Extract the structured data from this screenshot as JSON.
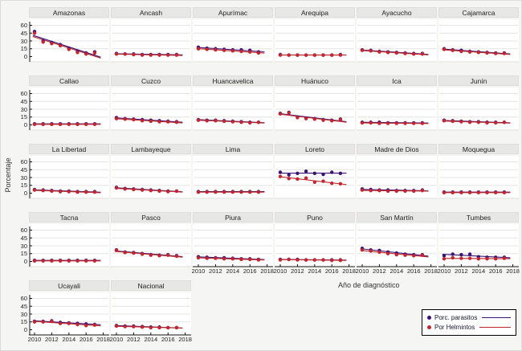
{
  "figure": {
    "ylabel": "Porcentaje",
    "xlabel": "Año de diagnóstico"
  },
  "legend": {
    "items": [
      {
        "label": "Porc. parasitos",
        "color": "#3a1275"
      },
      {
        "label": "Por Helmintos",
        "color": "#c1272d"
      }
    ]
  },
  "chart_data": {
    "type": "scatter",
    "x": [
      2010,
      2011,
      2012,
      2013,
      2014,
      2015,
      2016,
      2017
    ],
    "x_ticks": [
      2010,
      2012,
      2014,
      2016,
      2018
    ],
    "y_ticks": [
      0,
      15,
      30,
      45,
      60
    ],
    "ylim": [
      0,
      60
    ],
    "xlim": [
      2009.5,
      2018.5
    ],
    "grid": true,
    "trend_lines": true,
    "legend_position": "bottom-right",
    "colors": {
      "parasitos": "#3a1275",
      "helmintos": "#c1272d"
    },
    "series_names": [
      "Porc. parasitos",
      "Por Helmintos"
    ],
    "facets": [
      {
        "title": "Amazonas",
        "parasitos": [
          48,
          30,
          27,
          23,
          16,
          10,
          7,
          9
        ],
        "helmintos": [
          45,
          28,
          25,
          21,
          14,
          8,
          5,
          7
        ]
      },
      {
        "title": "Ancash",
        "parasitos": [
          6,
          5,
          5,
          4,
          4,
          4,
          4,
          4
        ],
        "helmintos": [
          5,
          5,
          4,
          3,
          3,
          3,
          3,
          3
        ]
      },
      {
        "title": "Apurímac",
        "parasitos": [
          18,
          16,
          15,
          14,
          13,
          13,
          12,
          9
        ],
        "helmintos": [
          15,
          14,
          13,
          12,
          11,
          10,
          9,
          7
        ]
      },
      {
        "title": "Arequipa",
        "parasitos": [
          4,
          3,
          3,
          3,
          3,
          3,
          3,
          4
        ],
        "helmintos": [
          3,
          3,
          3,
          3,
          3,
          3,
          3,
          3
        ]
      },
      {
        "title": "Ayacucho",
        "parasitos": [
          13,
          12,
          10,
          9,
          8,
          7,
          6,
          6
        ],
        "helmintos": [
          12,
          11,
          9,
          8,
          7,
          6,
          5,
          5
        ]
      },
      {
        "title": "Cajamarca",
        "parasitos": [
          15,
          13,
          12,
          10,
          9,
          8,
          7,
          7
        ],
        "helmintos": [
          14,
          12,
          10,
          9,
          8,
          7,
          6,
          6
        ]
      },
      {
        "title": "Callao",
        "parasitos": [
          2,
          2,
          2,
          2,
          2,
          2,
          2,
          2
        ],
        "helmintos": [
          1,
          1,
          1,
          1,
          1,
          1,
          1,
          1
        ]
      },
      {
        "title": "Cuzco",
        "parasitos": [
          14,
          12,
          11,
          10,
          9,
          8,
          7,
          6
        ],
        "helmintos": [
          12,
          11,
          10,
          8,
          7,
          6,
          6,
          5
        ]
      },
      {
        "title": "Huancavelica",
        "parasitos": [
          10,
          9,
          9,
          8,
          7,
          6,
          5,
          5
        ],
        "helmintos": [
          9,
          8,
          8,
          7,
          6,
          5,
          4,
          5
        ]
      },
      {
        "title": "Huánuco",
        "parasitos": [
          22,
          24,
          15,
          13,
          12,
          10,
          9,
          11
        ],
        "helmintos": [
          21,
          23,
          14,
          12,
          11,
          9,
          8,
          10
        ]
      },
      {
        "title": "Ica",
        "parasitos": [
          5,
          5,
          5,
          4,
          4,
          4,
          4,
          4
        ],
        "helmintos": [
          4,
          4,
          3,
          3,
          3,
          3,
          3,
          3
        ]
      },
      {
        "title": "Junín",
        "parasitos": [
          9,
          8,
          7,
          6,
          6,
          5,
          5,
          5
        ],
        "helmintos": [
          8,
          7,
          6,
          5,
          5,
          4,
          4,
          5
        ]
      },
      {
        "title": "La Libertad",
        "parasitos": [
          7,
          6,
          5,
          4,
          4,
          3,
          3,
          3
        ],
        "helmintos": [
          6,
          5,
          4,
          3,
          3,
          2,
          2,
          2
        ]
      },
      {
        "title": "Lambayeque",
        "parasitos": [
          11,
          9,
          8,
          7,
          6,
          5,
          4,
          4
        ],
        "helmintos": [
          10,
          8,
          7,
          6,
          5,
          4,
          3,
          4
        ]
      },
      {
        "title": "Lima",
        "parasitos": [
          3,
          3,
          3,
          3,
          3,
          3,
          3,
          3
        ],
        "helmintos": [
          2,
          2,
          2,
          2,
          2,
          2,
          2,
          2
        ]
      },
      {
        "title": "Loreto",
        "parasitos": [
          40,
          35,
          38,
          42,
          38,
          36,
          40,
          38
        ],
        "helmintos": [
          32,
          28,
          27,
          29,
          21,
          23,
          19,
          18
        ]
      },
      {
        "title": "Madre de Dios",
        "parasitos": [
          8,
          7,
          6,
          6,
          5,
          5,
          5,
          6
        ],
        "helmintos": [
          6,
          5,
          5,
          4,
          4,
          4,
          4,
          5
        ]
      },
      {
        "title": "Moquegua",
        "parasitos": [
          2,
          2,
          2,
          2,
          2,
          2,
          2,
          2
        ],
        "helmintos": [
          1,
          1,
          1,
          1,
          1,
          1,
          1,
          1
        ]
      },
      {
        "title": "Tacna",
        "parasitos": [
          2,
          2,
          2,
          2,
          2,
          2,
          2,
          2
        ],
        "helmintos": [
          1,
          1,
          1,
          1,
          1,
          1,
          1,
          1
        ]
      },
      {
        "title": "Pasco",
        "parasitos": [
          22,
          18,
          17,
          15,
          13,
          12,
          13,
          11
        ],
        "helmintos": [
          21,
          17,
          16,
          14,
          12,
          11,
          12,
          10
        ]
      },
      {
        "title": "Piura",
        "parasitos": [
          9,
          8,
          7,
          7,
          6,
          5,
          5,
          4
        ],
        "helmintos": [
          7,
          6,
          6,
          5,
          5,
          4,
          4,
          3
        ]
      },
      {
        "title": "Puno",
        "parasitos": [
          4,
          4,
          4,
          3,
          3,
          3,
          3,
          3
        ],
        "helmintos": [
          3,
          4,
          3,
          3,
          3,
          3,
          2,
          2
        ]
      },
      {
        "title": "San Martín",
        "parasitos": [
          25,
          22,
          21,
          18,
          16,
          14,
          13,
          13
        ],
        "helmintos": [
          22,
          20,
          18,
          15,
          13,
          12,
          11,
          12
        ]
      },
      {
        "title": "Tumbes",
        "parasitos": [
          11,
          14,
          13,
          14,
          9,
          8,
          8,
          8
        ],
        "helmintos": [
          5,
          7,
          6,
          6,
          5,
          5,
          5,
          6
        ]
      },
      {
        "title": "Ucayali",
        "parasitos": [
          16,
          16,
          17,
          14,
          13,
          12,
          11,
          10
        ],
        "helmintos": [
          15,
          15,
          16,
          12,
          12,
          10,
          8,
          9
        ]
      },
      {
        "title": "Nacional",
        "parasitos": [
          8,
          7,
          7,
          6,
          5,
          5,
          4,
          4
        ],
        "helmintos": [
          7,
          6,
          6,
          5,
          4,
          4,
          4,
          4
        ]
      }
    ]
  }
}
